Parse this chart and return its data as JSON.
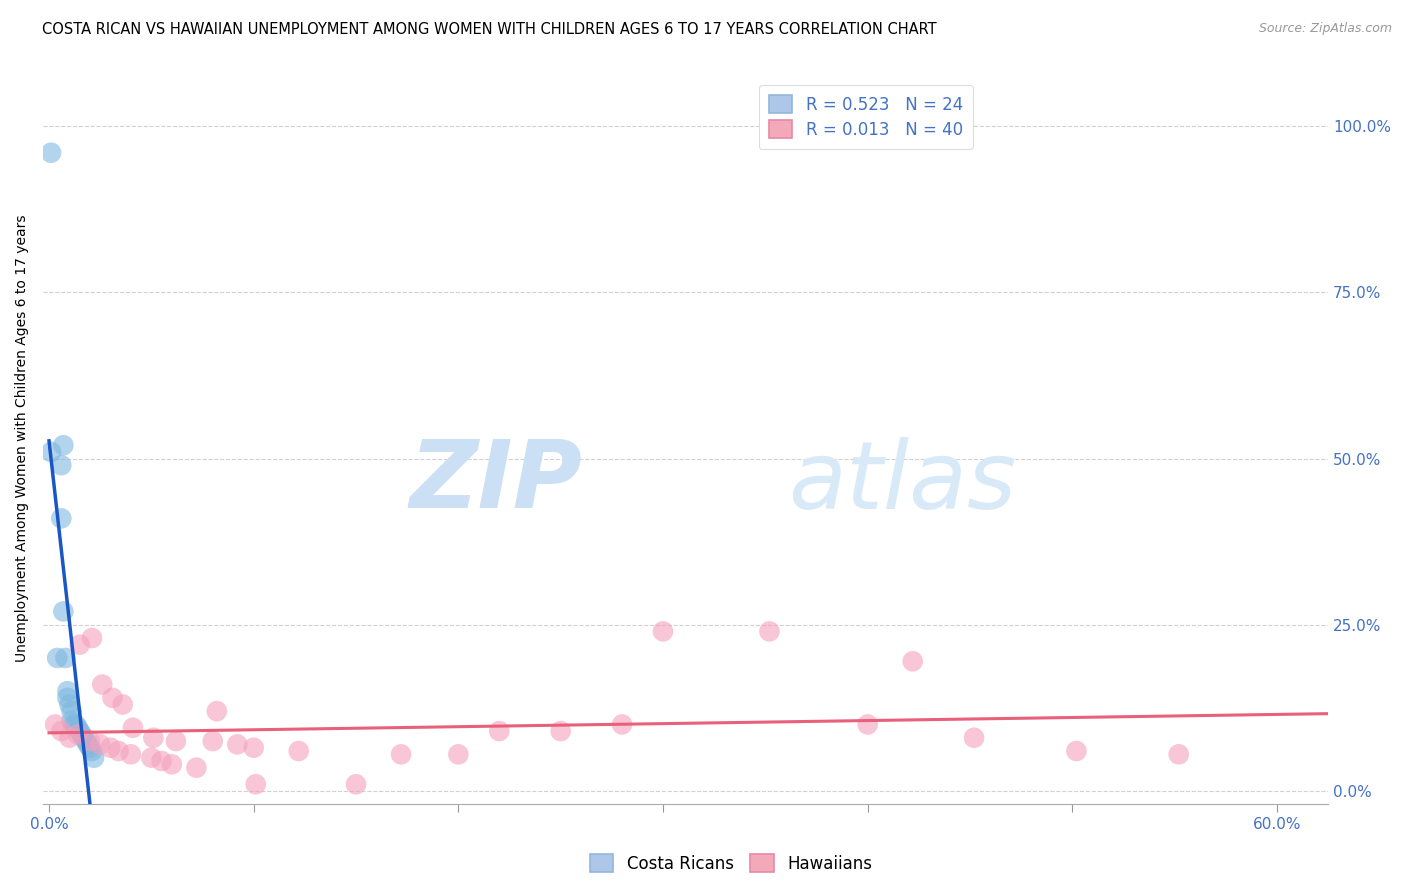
{
  "title": "COSTA RICAN VS HAWAIIAN UNEMPLOYMENT AMONG WOMEN WITH CHILDREN AGES 6 TO 17 YEARS CORRELATION CHART",
  "source": "Source: ZipAtlas.com",
  "ylabel": "Unemployment Among Women with Children Ages 6 to 17 years",
  "xlim": [
    -0.003,
    0.625
  ],
  "ylim": [
    -0.02,
    1.08
  ],
  "xtick_positions": [
    0.0,
    0.1,
    0.2,
    0.3,
    0.4,
    0.5,
    0.6
  ],
  "xticklabels_show": [
    "0.0%",
    "",
    "",
    "",
    "",
    "",
    "60.0%"
  ],
  "yticks_right": [
    0.0,
    0.25,
    0.5,
    0.75,
    1.0
  ],
  "yticklabels_right": [
    "0.0%",
    "25.0%",
    "50.0%",
    "75.0%",
    "100.0%"
  ],
  "costa_rican_R": "0.523",
  "costa_rican_N": "24",
  "hawaiian_R": "0.013",
  "hawaiian_N": "40",
  "legend_color_cr": "#aec6e8",
  "legend_color_hw": "#f4a9b8",
  "scatter_color_cr": "#7fb8e0",
  "scatter_color_hw": "#f4a0bc",
  "line_color_cr": "#1a56c4",
  "line_color_hw": "#e8607a",
  "legend_text_color": "#4472c4",
  "watermark_zip": "ZIP",
  "watermark_atlas": "atlas",
  "watermark_color": "#cce0f5",
  "costa_rican_x": [
    0.001,
    0.001,
    0.006,
    0.006,
    0.007,
    0.008,
    0.009,
    0.009,
    0.01,
    0.011,
    0.011,
    0.012,
    0.013,
    0.014,
    0.015,
    0.016,
    0.017,
    0.018,
    0.019,
    0.02,
    0.021,
    0.022,
    0.007,
    0.004
  ],
  "costa_rican_y": [
    0.96,
    0.51,
    0.49,
    0.41,
    0.27,
    0.2,
    0.15,
    0.14,
    0.13,
    0.12,
    0.105,
    0.1,
    0.1,
    0.095,
    0.09,
    0.085,
    0.08,
    0.075,
    0.07,
    0.065,
    0.06,
    0.05,
    0.52,
    0.2
  ],
  "hawaiian_x": [
    0.003,
    0.006,
    0.01,
    0.014,
    0.015,
    0.02,
    0.021,
    0.025,
    0.026,
    0.03,
    0.031,
    0.034,
    0.036,
    0.04,
    0.041,
    0.05,
    0.051,
    0.055,
    0.06,
    0.062,
    0.072,
    0.08,
    0.082,
    0.092,
    0.1,
    0.101,
    0.122,
    0.15,
    0.172,
    0.2,
    0.22,
    0.25,
    0.28,
    0.3,
    0.352,
    0.4,
    0.422,
    0.452,
    0.502,
    0.552
  ],
  "hawaiian_y": [
    0.1,
    0.09,
    0.08,
    0.085,
    0.22,
    0.075,
    0.23,
    0.07,
    0.16,
    0.065,
    0.14,
    0.06,
    0.13,
    0.055,
    0.095,
    0.05,
    0.08,
    0.045,
    0.04,
    0.075,
    0.035,
    0.075,
    0.12,
    0.07,
    0.065,
    0.01,
    0.06,
    0.01,
    0.055,
    0.055,
    0.09,
    0.09,
    0.1,
    0.24,
    0.24,
    0.1,
    0.195,
    0.08,
    0.06,
    0.055
  ],
  "grid_color": "#cccccc",
  "bg_color": "#ffffff",
  "title_fontsize": 10.5,
  "source_fontsize": 9,
  "ylabel_fontsize": 10,
  "tick_fontsize": 11,
  "legend_fontsize": 12
}
